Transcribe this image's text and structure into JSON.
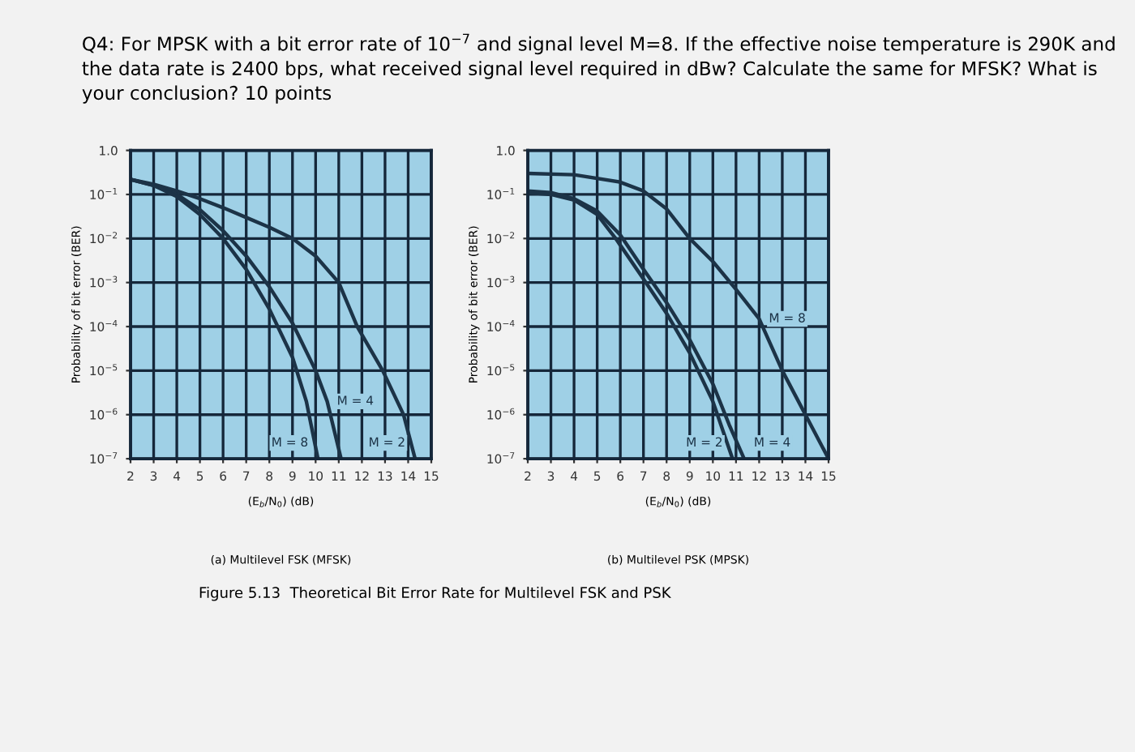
{
  "chart_data": [
    {
      "type": "line",
      "title": "Q4: For MPSK with a bit error rate of 10$^{−7}$ and signal level M=8. If the effective noise temperature is 290K and the data rate is 2400 bps, what received signal level required in dBw? Calculate the same for MFSK? What is your conclusion? 10 points",
      "xlabel": "(E$_{b}$/N$_{0}$) (dB)",
      "ylabel": "Probability of bit error (BER)",
      "log": "y",
      "grid": true,
      "marker": "none",
      "line_style": "solid",
      "xlim": [
        2,
        15
      ],
      "xticks": [
        2,
        3,
        4,
        5,
        6,
        7,
        8,
        9,
        10,
        11,
        12,
        13,
        14,
        15
      ],
      "ylim": [
        1e-07,
        1
      ],
      "yticks": [
        {
          "value": 1,
          "label": "1.0"
        },
        {
          "value": 0.1,
          "label": "10$^{−1}$"
        },
        {
          "value": 0.01,
          "label": "10$^{−2}$"
        },
        {
          "value": 0.001,
          "label": "10$^{−3}$"
        },
        {
          "value": 0.0001,
          "label": "10$^{−4}$"
        },
        {
          "value": 1e-05,
          "label": "10$^{−5}$"
        },
        {
          "value": 1e-06,
          "label": "10$^{−6}$"
        },
        {
          "value": 1e-07,
          "label": "10$^{−7}$"
        }
      ],
      "series": [
        {
          "name": "M = 2",
          "color": "#1c3347",
          "x": [
            2,
            3,
            4,
            5,
            6,
            7,
            8,
            9,
            10,
            11,
            11.8,
            12.9,
            13.8,
            14.3
          ],
          "values": [
            0.22,
            0.17,
            0.12,
            0.08,
            0.05,
            0.03,
            0.018,
            0.01,
            0.004,
            0.001,
            0.0001,
            1e-05,
            1e-06,
            1e-07
          ]
        },
        {
          "name": "M = 4",
          "color": "#1c3347",
          "x": [
            2,
            3,
            4,
            5,
            6,
            7,
            8,
            9,
            10,
            10.5,
            11.1
          ],
          "values": [
            0.22,
            0.16,
            0.1,
            0.045,
            0.015,
            0.004,
            0.0008,
            0.00012,
            1e-05,
            2e-06,
            1e-07
          ]
        },
        {
          "name": "M = 8",
          "color": "#1c3347",
          "x": [
            2,
            3,
            4,
            5,
            6,
            7,
            8,
            9,
            9.6,
            10.1
          ],
          "values": [
            0.22,
            0.16,
            0.09,
            0.035,
            0.01,
            0.002,
            0.00025,
            2e-05,
            2e-06,
            1e-07
          ]
        }
      ],
      "annotations": [
        "(a) Multilevel FSK (MFSK)",
        "Figure 5.13  Theoretical Bit Error Rate for Multilevel FSK and PSK"
      ]
    },
    {
      "type": "line",
      "xlabel": "(E$_{b}$/N$_{0}$) (dB)",
      "ylabel": "Probability of bit error (BER)",
      "log": "y",
      "grid": true,
      "marker": "none",
      "line_style": "solid",
      "xlim": [
        2,
        15
      ],
      "xticks": [
        2,
        3,
        4,
        5,
        6,
        7,
        8,
        9,
        10,
        11,
        12,
        13,
        14,
        15
      ],
      "ylim": [
        1e-07,
        1
      ],
      "yticks": [
        {
          "value": 1,
          "label": "1.0"
        },
        {
          "value": 0.1,
          "label": "10$^{−1}$"
        },
        {
          "value": 0.01,
          "label": "10$^{−2}$"
        },
        {
          "value": 0.001,
          "label": "10$^{−3}$"
        },
        {
          "value": 0.0001,
          "label": "10$^{−4}$"
        },
        {
          "value": 1e-05,
          "label": "10$^{−5}$"
        },
        {
          "value": 1e-06,
          "label": "10$^{−6}$"
        },
        {
          "value": 1e-07,
          "label": "10$^{−7}$"
        }
      ],
      "series": [
        {
          "name": "M = 2",
          "color": "#1c3347",
          "x": [
            2,
            3,
            4,
            5,
            5.8,
            7,
            8,
            9,
            10,
            10.85
          ],
          "values": [
            0.11,
            0.1,
            0.075,
            0.035,
            0.01,
            0.0012,
            0.0002,
            2.5e-05,
            2e-06,
            1e-07
          ]
        },
        {
          "name": "M = 4",
          "color": "#1c3347",
          "x": [
            2,
            3,
            4,
            5,
            6,
            7,
            8,
            9,
            10,
            10.7,
            11.35
          ],
          "values": [
            0.12,
            0.11,
            0.08,
            0.042,
            0.012,
            0.002,
            0.00035,
            5e-05,
            5e-06,
            6e-07,
            1e-07
          ]
        },
        {
          "name": "M = 8",
          "color": "#1c3347",
          "x": [
            2,
            4,
            6,
            7,
            8,
            9,
            10,
            11,
            12,
            13,
            14,
            15
          ],
          "values": [
            0.3,
            0.28,
            0.19,
            0.12,
            0.047,
            0.01,
            0.003,
            0.0007,
            0.00015,
            1e-05,
            1e-06,
            1e-07
          ]
        }
      ],
      "annotations": [
        "(b) Multilevel PSK (MPSK)"
      ]
    }
  ]
}
